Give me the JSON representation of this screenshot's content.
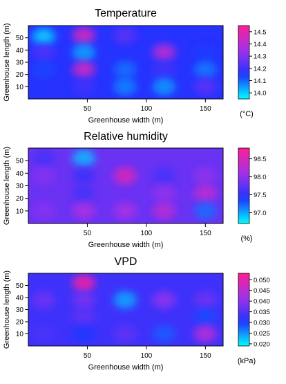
{
  "chart_data": [
    {
      "type": "heatmap",
      "title": "Temperature",
      "xlabel": "Greenhouse width (m)",
      "ylabel": "Greenhouse length (m)",
      "xlim": [
        0,
        165
      ],
      "ylim": [
        0,
        60
      ],
      "xticks": [
        50,
        100,
        150
      ],
      "yticks": [
        10,
        20,
        30,
        40,
        50
      ],
      "colorbar": {
        "unit": "(°C)",
        "range": [
          13.95,
          14.55
        ],
        "ticks": [
          "14.0",
          "14.1",
          "14.2",
          "14.3",
          "14.4",
          "14.5"
        ]
      },
      "background_value": 14.16,
      "hotspots": [
        {
          "x": 13,
          "y": 51,
          "value": 14.0
        },
        {
          "x": 13,
          "y": 38,
          "value": 14.22
        },
        {
          "x": 13,
          "y": 24,
          "value": 14.13
        },
        {
          "x": 47,
          "y": 52,
          "value": 14.45
        },
        {
          "x": 47,
          "y": 38,
          "value": 14.04
        },
        {
          "x": 47,
          "y": 24,
          "value": 14.44
        },
        {
          "x": 47,
          "y": 10,
          "value": 14.2
        },
        {
          "x": 82,
          "y": 52,
          "value": 14.24
        },
        {
          "x": 82,
          "y": 24,
          "value": 14.09
        },
        {
          "x": 82,
          "y": 10,
          "value": 14.07
        },
        {
          "x": 115,
          "y": 38,
          "value": 14.4
        },
        {
          "x": 115,
          "y": 24,
          "value": 14.2
        },
        {
          "x": 115,
          "y": 10,
          "value": 14.05
        },
        {
          "x": 150,
          "y": 38,
          "value": 14.14
        },
        {
          "x": 150,
          "y": 24,
          "value": 14.08
        },
        {
          "x": 150,
          "y": 10,
          "value": 14.24
        }
      ]
    },
    {
      "type": "heatmap",
      "title": "Relative humidity",
      "xlabel": "Greenhouse width (m)",
      "ylabel": "Greenhouse length (m)",
      "xlim": [
        0,
        165
      ],
      "ylim": [
        0,
        60
      ],
      "xticks": [
        50,
        100,
        150
      ],
      "yticks": [
        10,
        20,
        30,
        40,
        50
      ],
      "colorbar": {
        "unit": "(%)",
        "range": [
          96.7,
          98.8
        ],
        "ticks": [
          "97.0",
          "97.5",
          "98.0",
          "98.5"
        ]
      },
      "background_value": 97.8,
      "hotspots": [
        {
          "x": 13,
          "y": 52,
          "value": 97.6
        },
        {
          "x": 13,
          "y": 38,
          "value": 97.95
        },
        {
          "x": 13,
          "y": 10,
          "value": 97.95
        },
        {
          "x": 47,
          "y": 52,
          "value": 96.95
        },
        {
          "x": 47,
          "y": 38,
          "value": 97.55
        },
        {
          "x": 47,
          "y": 24,
          "value": 97.6
        },
        {
          "x": 47,
          "y": 10,
          "value": 98.15
        },
        {
          "x": 82,
          "y": 38,
          "value": 98.5
        },
        {
          "x": 82,
          "y": 10,
          "value": 98.15
        },
        {
          "x": 115,
          "y": 38,
          "value": 97.6
        },
        {
          "x": 115,
          "y": 24,
          "value": 98.0
        },
        {
          "x": 115,
          "y": 10,
          "value": 98.25
        },
        {
          "x": 150,
          "y": 38,
          "value": 98.0
        },
        {
          "x": 150,
          "y": 24,
          "value": 98.3
        },
        {
          "x": 150,
          "y": 10,
          "value": 97.2
        }
      ]
    },
    {
      "type": "heatmap",
      "title": "VPD",
      "xlabel": "Greenhouse width (m)",
      "ylabel": "Greenhouse length (m)",
      "xlim": [
        0,
        165
      ],
      "ylim": [
        0,
        60
      ],
      "xticks": [
        50,
        100,
        150
      ],
      "yticks": [
        10,
        20,
        30,
        40,
        50
      ],
      "colorbar": {
        "unit": "(kPa)",
        "range": [
          0.019,
          0.053
        ],
        "ticks": [
          "0.020",
          "0.025",
          "0.030",
          "0.035",
          "0.040",
          "0.045",
          "0.050"
        ]
      },
      "background_value": 0.033,
      "hotspots": [
        {
          "x": 13,
          "y": 38,
          "value": 0.037
        },
        {
          "x": 13,
          "y": 10,
          "value": 0.034
        },
        {
          "x": 47,
          "y": 52,
          "value": 0.051
        },
        {
          "x": 47,
          "y": 38,
          "value": 0.038
        },
        {
          "x": 47,
          "y": 24,
          "value": 0.036
        },
        {
          "x": 47,
          "y": 10,
          "value": 0.03
        },
        {
          "x": 82,
          "y": 38,
          "value": 0.024
        },
        {
          "x": 82,
          "y": 10,
          "value": 0.036
        },
        {
          "x": 115,
          "y": 38,
          "value": 0.04
        },
        {
          "x": 115,
          "y": 10,
          "value": 0.028
        },
        {
          "x": 150,
          "y": 38,
          "value": 0.037
        },
        {
          "x": 150,
          "y": 24,
          "value": 0.029
        },
        {
          "x": 150,
          "y": 10,
          "value": 0.044
        }
      ]
    }
  ]
}
